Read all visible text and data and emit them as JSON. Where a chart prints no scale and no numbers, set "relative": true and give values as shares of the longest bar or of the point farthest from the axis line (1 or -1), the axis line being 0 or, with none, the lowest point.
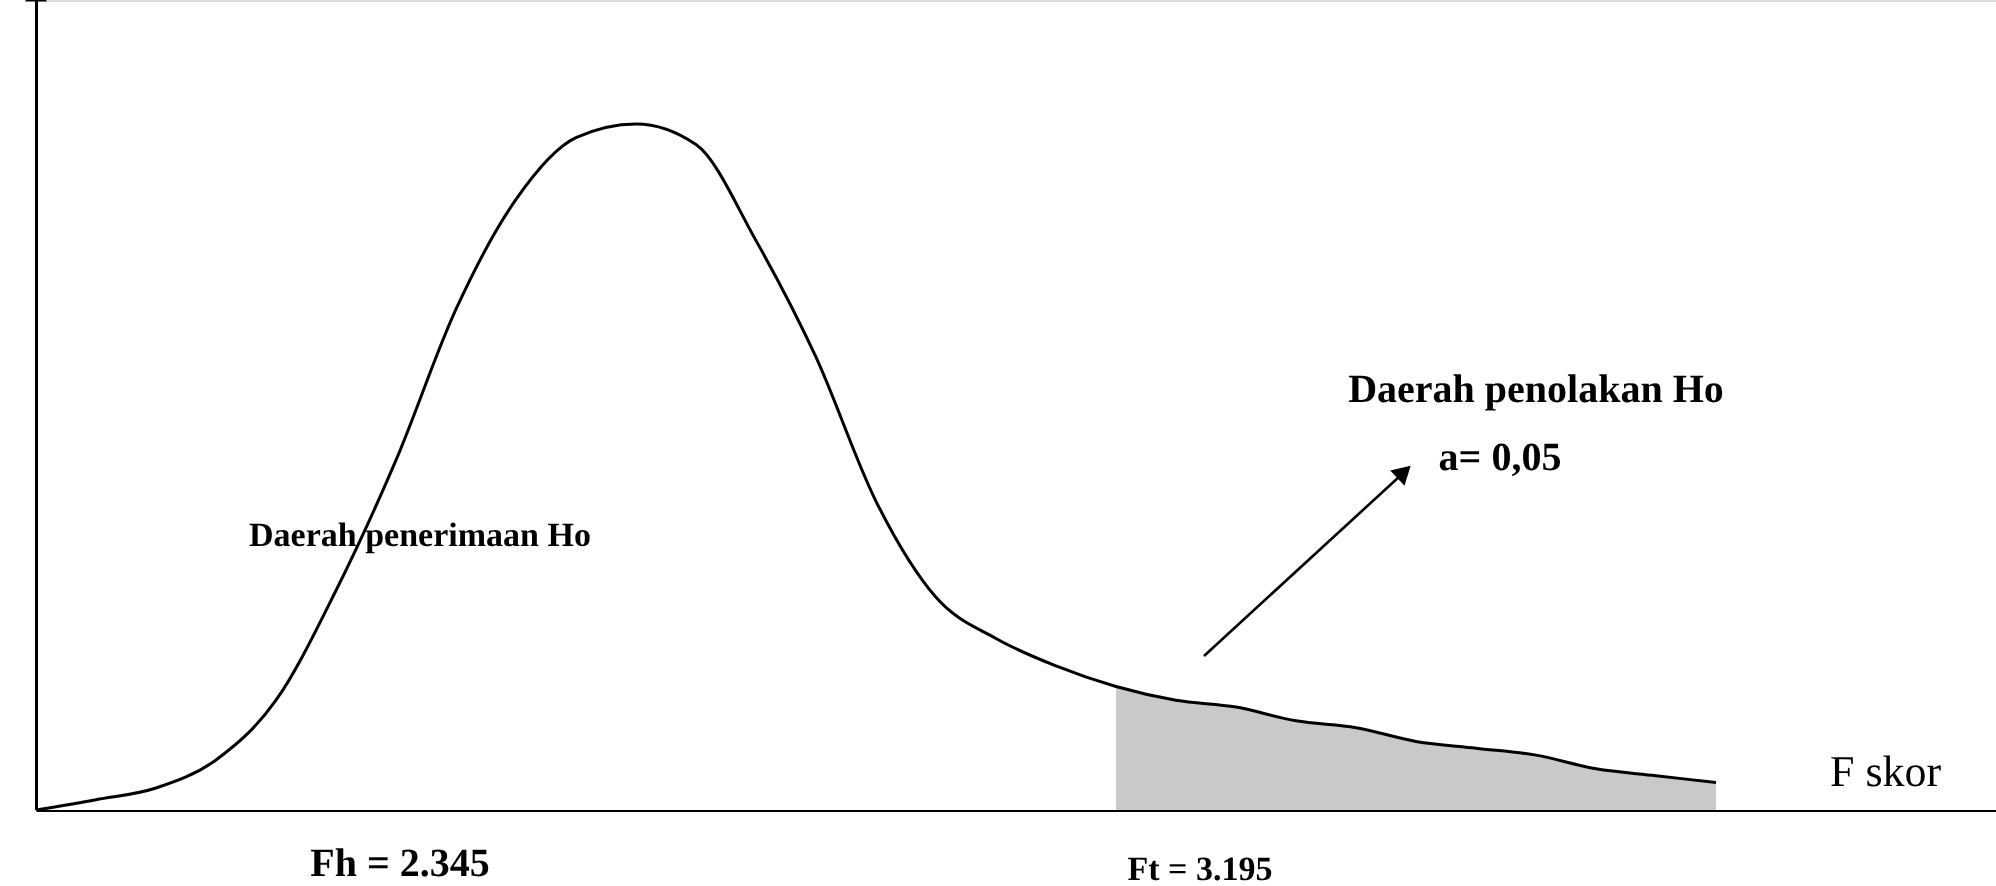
{
  "chart_data": {
    "type": "line",
    "relative": true,
    "xlabel": "F skor",
    "tick_labels": false,
    "line_style": "solid",
    "categories": [
      null,
      null,
      null,
      null,
      null,
      null,
      null,
      null,
      null,
      null,
      null,
      null,
      null,
      null,
      null,
      null,
      null,
      null,
      null,
      null,
      null,
      null,
      null,
      null,
      null,
      null,
      null,
      null,
      null
    ],
    "series": [
      {
        "color": "#000000",
        "values": [
          0,
          0.015,
          0.032,
          0.073,
          0.16,
          0.32,
          0.51,
          0.73,
          0.89,
          0.98,
          1,
          0.97,
          0.83,
          0.66,
          0.45,
          0.31,
          0.25,
          0.21,
          0.18,
          0.16,
          0.15,
          0.13,
          0.12,
          0.1,
          0.09,
          0.08,
          0.06,
          0.05,
          0.04
        ]
      },
      {
        "type": "area",
        "color": "#bbbbbb",
        "values": [
          null,
          null,
          null,
          null,
          null,
          null,
          null,
          null,
          null,
          null,
          null,
          null,
          null,
          null,
          null,
          null,
          null,
          null,
          0.18,
          0.16,
          0.15,
          0.13,
          0.12,
          0.1,
          0.09,
          0.08,
          0.06,
          0.05,
          0.04
        ]
      }
    ],
    "annotations": [
      "Daerah penerimaan Ho",
      "Daerah penolakan Ho",
      "a= 0,05",
      "Fh = 2.345",
      "Ft = 3.195"
    ]
  }
}
